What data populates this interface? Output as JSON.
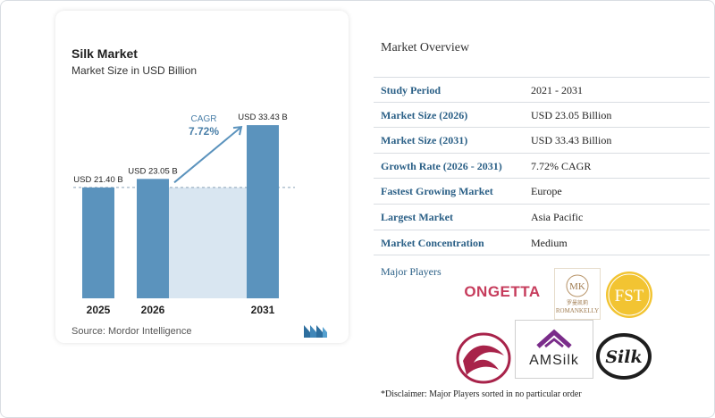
{
  "chart_data": {
    "type": "bar",
    "title": "Silk Market",
    "subtitle": "Market Size in USD Billion",
    "categories": [
      "2025",
      "2026",
      "2031"
    ],
    "values": [
      21.4,
      23.05,
      33.43
    ],
    "data_labels": [
      "USD 21.40 B",
      "USD 23.05 B",
      "USD 33.43 B"
    ],
    "cagr_label": "CAGR",
    "cagr_value": "7.72%",
    "source": "Source: Mordor Intelligence",
    "colors": {
      "bar": "#5b93bd",
      "bar_top": "#4f86b0",
      "shade": "#d9e6f1",
      "arrow": "#5b93bd",
      "cagr_text": "#4a7fa8"
    }
  },
  "overview": {
    "title": "Market Overview",
    "rows": [
      {
        "label": "Study Period",
        "value": "2021 - 2031"
      },
      {
        "label": "Market Size (2026)",
        "value": "USD 23.05 Billion"
      },
      {
        "label": "Market Size (2031)",
        "value": "USD 33.43 Billion"
      },
      {
        "label": "Growth Rate (2026 - 2031)",
        "value": "7.72% CAGR"
      },
      {
        "label": "Fastest Growing Market",
        "value": "Europe"
      },
      {
        "label": "Largest Market",
        "value": "Asia Pacific"
      },
      {
        "label": "Market Concentration",
        "value": "Medium"
      }
    ]
  },
  "players": {
    "title": "Major Players",
    "logos": {
      "ongetta": "ONGETTA",
      "romankelly_mark": "MK",
      "romankelly_cn": "罗曼凯莉",
      "romankelly": "ROMANKELLY",
      "fst": "FST",
      "amsilk": "AMSilk",
      "silk": "Silk"
    },
    "icons": [
      "ribbon-icon"
    ]
  },
  "disclaimer": "*Disclaimer: Major Players sorted in no particular order"
}
